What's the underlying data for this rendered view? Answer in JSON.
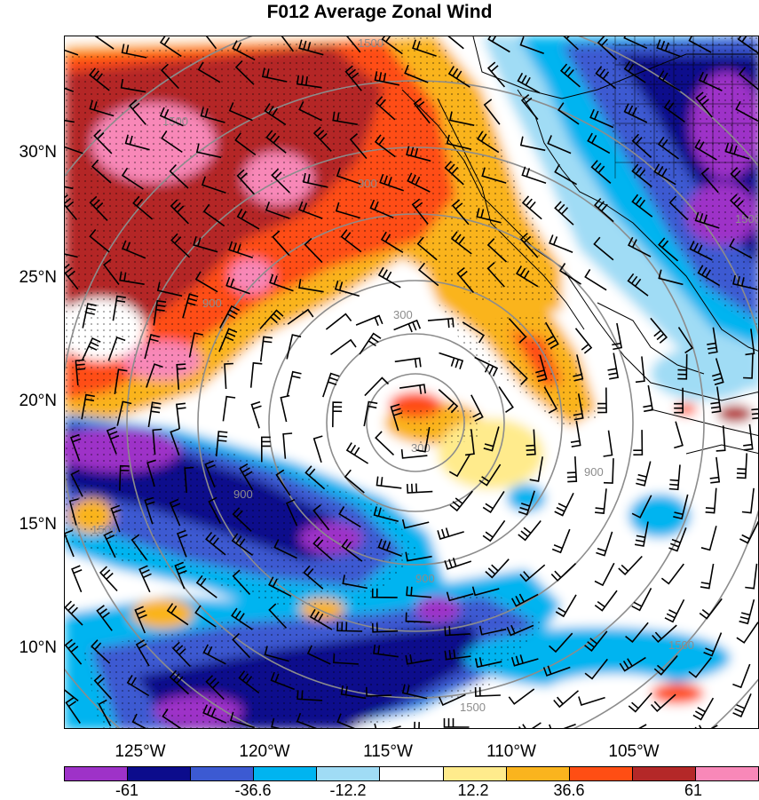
{
  "title": "F012 Average Zonal Wind",
  "lat_labels": [
    "30°N",
    "25°N",
    "20°N",
    "15°N",
    "10°N"
  ],
  "lon_labels": [
    "125°W",
    "120°W",
    "115°W",
    "110°W",
    "105°W"
  ],
  "colorbar": {
    "colors": [
      "#9e32c8",
      "#0c0c8c",
      "#3c5ad2",
      "#00b4f0",
      "#a0dcf5",
      "#ffffff",
      "#ffeb8c",
      "#fab41e",
      "#ff4e14",
      "#b42828",
      "#f888b8"
    ],
    "labels": [
      "-61",
      "-36.6",
      "-12.2",
      "12.2",
      "36.6",
      "61"
    ]
  },
  "contour_labels": [
    "1500",
    "1500",
    "1500",
    "1500",
    "1500",
    "1500",
    "900",
    "900",
    "900",
    "900",
    "900",
    "300",
    "300"
  ]
}
